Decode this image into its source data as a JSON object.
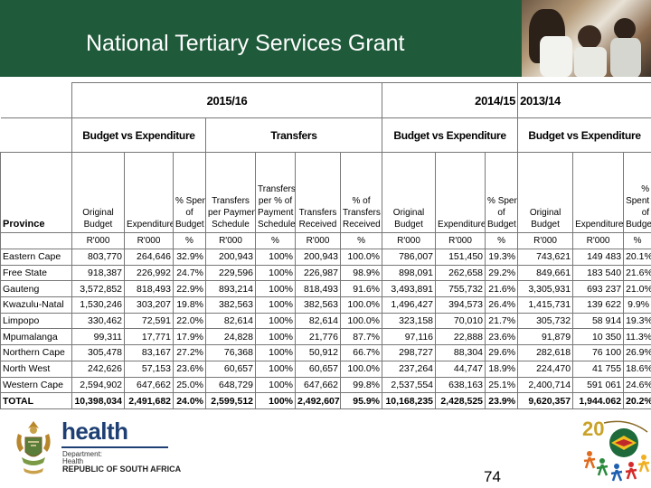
{
  "slide": {
    "title": "National Tertiary Services Grant",
    "page_number": "74"
  },
  "table": {
    "year_headers": [
      "2015/16",
      "2014/15",
      "2013/14"
    ],
    "group_headers": [
      "Budget vs Expenditure",
      "Transfers",
      "Budget vs Expenditure",
      "Budget vs Expenditure"
    ],
    "province_header": "Province",
    "column_headers": [
      [
        "Original",
        "Budget"
      ],
      [
        "Expenditure"
      ],
      [
        "% Spent",
        "of",
        "Budget"
      ],
      [
        "Transfers",
        "per Payment",
        "Schedule"
      ],
      [
        "Transfers",
        "per % of",
        "Payment",
        "Schedule"
      ],
      [
        "Transfers",
        "Received"
      ],
      [
        "% of",
        "Transfers",
        "Received"
      ],
      [
        "Original",
        "Budget"
      ],
      [
        "Expenditure"
      ],
      [
        "% Spent",
        "of",
        "Budget"
      ],
      [
        "Original",
        "Budget"
      ],
      [
        "Expenditure"
      ],
      [
        "%",
        "Spent",
        "of",
        "Budget"
      ]
    ],
    "units": [
      "R'000",
      "R'000",
      "%",
      "R'000",
      "%",
      "R'000",
      "%",
      "R'000",
      "R'000",
      "%",
      "R'000",
      "R'000",
      "%"
    ],
    "rows": [
      {
        "province": "Eastern Cape",
        "values": [
          "803,770",
          "264,646",
          "32.9%",
          "200,943",
          "100%",
          "200,943",
          "100.0%",
          "786,007",
          "151,450",
          "19.3%",
          "743,621",
          "149 483",
          "20.1%"
        ]
      },
      {
        "province": "Free State",
        "values": [
          "918,387",
          "226,992",
          "24.7%",
          "229,596",
          "100%",
          "226,987",
          "98.9%",
          "898,091",
          "262,658",
          "29.2%",
          "849,661",
          "183 540",
          "21.6%"
        ]
      },
      {
        "province": "Gauteng",
        "values": [
          "3,572,852",
          "818,493",
          "22.9%",
          "893,214",
          "100%",
          "818,493",
          "91.6%",
          "3,493,891",
          "755,732",
          "21.6%",
          "3,305,931",
          "693 237",
          "21.0%"
        ]
      },
      {
        "province": "Kwazulu-Natal",
        "values": [
          "1,530,246",
          "303,207",
          "19.8%",
          "382,563",
          "100%",
          "382,563",
          "100.0%",
          "1,496,427",
          "394,573",
          "26.4%",
          "1,415,731",
          "139 622",
          "9.9%"
        ]
      },
      {
        "province": "Limpopo",
        "values": [
          "330,462",
          "72,591",
          "22.0%",
          "82,614",
          "100%",
          "82,614",
          "100.0%",
          "323,158",
          "70,010",
          "21.7%",
          "305,732",
          "58 914",
          "19.3%"
        ]
      },
      {
        "province": "Mpumalanga",
        "values": [
          "99,311",
          "17,771",
          "17.9%",
          "24,828",
          "100%",
          "21,776",
          "87.7%",
          "97,116",
          "22,888",
          "23.6%",
          "91,879",
          "10 350",
          "11.3%"
        ]
      },
      {
        "province": "Northern Cape",
        "values": [
          "305,478",
          "83,167",
          "27.2%",
          "76,368",
          "100%",
          "50,912",
          "66.7%",
          "298,727",
          "88,304",
          "29.6%",
          "282,618",
          "76 100",
          "26.9%"
        ]
      },
      {
        "province": "North West",
        "values": [
          "242,626",
          "57,153",
          "23.6%",
          "60,657",
          "100%",
          "60,657",
          "100.0%",
          "237,264",
          "44,747",
          "18.9%",
          "224,470",
          "41 755",
          "18.6%"
        ]
      },
      {
        "province": "Western Cape",
        "values": [
          "2,594,902",
          "647,662",
          "25.0%",
          "648,729",
          "100%",
          "647,662",
          "99.8%",
          "2,537,554",
          "638,163",
          "25.1%",
          "2,400,714",
          "591 061",
          "24.6%"
        ]
      }
    ],
    "total": {
      "province": "TOTAL",
      "values": [
        "10,398,034",
        "2,491,682",
        "24.0%",
        "2,599,512",
        "100%",
        "2,492,607",
        "95.9%",
        "10,168,235",
        "2,428,525",
        "23.9%",
        "9,620,357",
        "1,944.062",
        "20.2%"
      ]
    }
  },
  "logo": {
    "name": "health",
    "department_lines": [
      "Department:",
      "Health"
    ],
    "country": "REPUBLIC OF SOUTH AFRICA",
    "colors": {
      "navy": "#1e3f73",
      "banner_green": "#1f5a3a"
    }
  }
}
